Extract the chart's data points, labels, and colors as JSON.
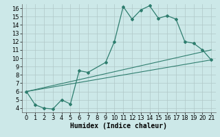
{
  "title": "",
  "xlabel": "Humidex (Indice chaleur)",
  "bg_color": "#cce8e8",
  "grid_color": "#b0c8c8",
  "line_color": "#2e7d6e",
  "xlim": [
    -0.5,
    21.5
  ],
  "ylim": [
    3.5,
    16.5
  ],
  "xticks": [
    0,
    1,
    2,
    3,
    4,
    5,
    6,
    7,
    8,
    9,
    10,
    11,
    12,
    13,
    14,
    15,
    16,
    17,
    18,
    19,
    20,
    21
  ],
  "yticks": [
    4,
    5,
    6,
    7,
    8,
    9,
    10,
    11,
    12,
    13,
    14,
    15,
    16
  ],
  "line1_x": [
    0,
    1,
    2,
    3,
    4,
    5,
    6,
    7,
    9,
    10,
    11,
    12,
    13,
    14,
    15,
    16,
    17,
    18,
    19,
    20,
    21
  ],
  "line1_y": [
    6.0,
    4.4,
    4.0,
    3.9,
    5.0,
    4.5,
    8.5,
    8.3,
    9.5,
    12.0,
    16.2,
    14.7,
    15.8,
    16.3,
    14.8,
    15.1,
    14.7,
    12.0,
    11.8,
    11.0,
    9.8
  ],
  "line2_x": [
    0,
    21
  ],
  "line2_y": [
    6.0,
    9.8
  ],
  "line3_x": [
    0,
    21
  ],
  "line3_y": [
    6.0,
    11.0
  ],
  "font_size": 6,
  "xlabel_fontsize": 7
}
